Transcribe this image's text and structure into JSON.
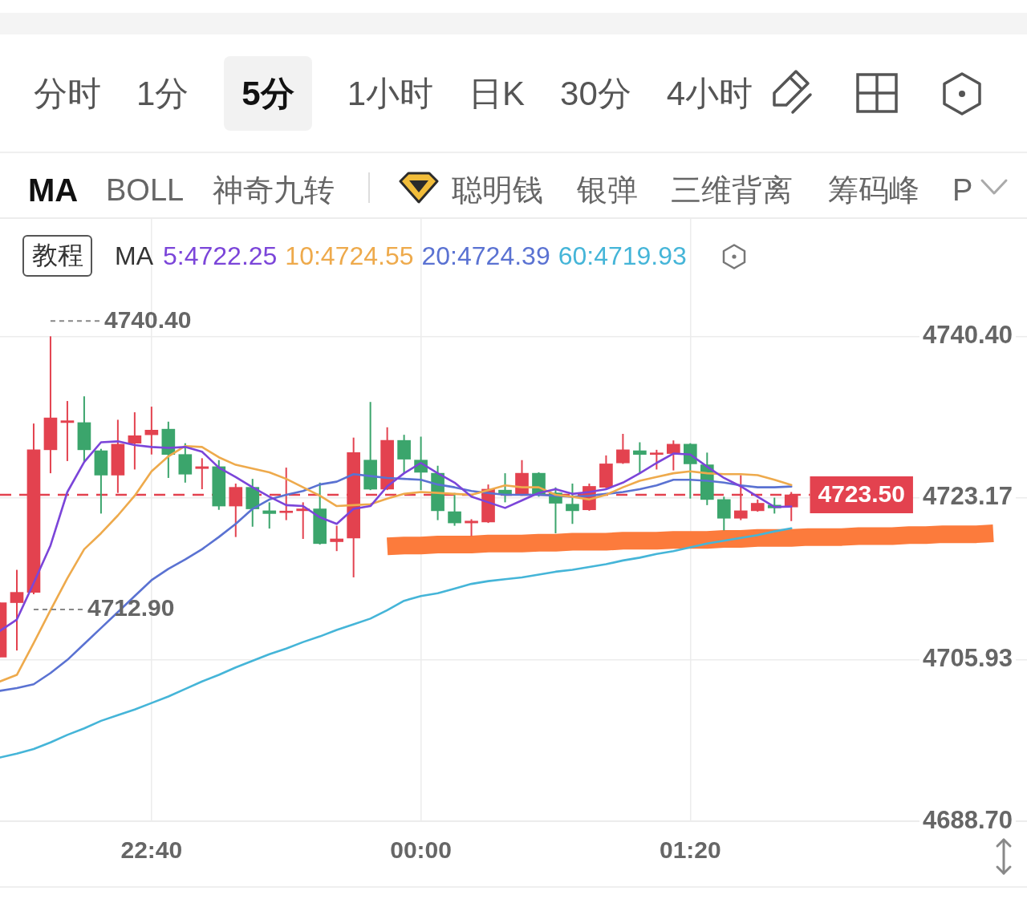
{
  "chart_data": {
    "type": "candlestick",
    "categories": [
      null,
      null,
      null,
      null,
      null,
      null,
      null,
      null,
      null,
      "22:40",
      null,
      null,
      null,
      null,
      null,
      null,
      null,
      null,
      null,
      null,
      null,
      null,
      null,
      null,
      null,
      "00:00",
      null,
      null,
      null,
      null,
      null,
      null,
      null,
      null,
      null,
      null,
      null,
      null,
      null,
      null,
      null,
      "01:20",
      null,
      null,
      null,
      null,
      null,
      null,
      null,
      null,
      null,
      null,
      null,
      null,
      null,
      null,
      null,
      null,
      null,
      null,
      null,
      null
    ],
    "ohlc": [
      [
        4706.2,
        4712.0,
        4706.2,
        4712.0
      ],
      [
        4712.0,
        4715.5,
        4706.9,
        4713.1
      ],
      [
        4713.1,
        4731.1,
        4712.9,
        4728.3
      ],
      [
        4728.3,
        4740.4,
        4725.8,
        4731.7
      ],
      [
        4731.2,
        4733.5,
        4727.1,
        4731.4
      ],
      [
        4731.2,
        4734.0,
        4727.0,
        4728.3
      ],
      [
        4728.2,
        4728.4,
        4721.5,
        4725.6
      ],
      [
        4725.6,
        4731.5,
        4723.7,
        4728.9
      ],
      [
        4729.0,
        4732.3,
        4726.2,
        4729.8
      ],
      [
        4729.9,
        4732.9,
        4727.8,
        4730.4
      ],
      [
        4730.5,
        4731.3,
        4725.3,
        4727.8
      ],
      [
        4727.8,
        4729.0,
        4724.8,
        4725.7
      ],
      [
        4726.3,
        4727.4,
        4724.1,
        4726.5
      ],
      [
        4726.5,
        4727.2,
        4721.9,
        4722.3
      ],
      [
        4722.3,
        4724.7,
        4719.0,
        4724.3
      ],
      [
        4724.3,
        4725.2,
        4720.1,
        4722.0
      ],
      [
        4721.8,
        4722.7,
        4719.9,
        4721.5
      ],
      [
        4721.6,
        4726.4,
        4720.8,
        4721.7
      ],
      [
        4721.8,
        4722.7,
        4718.8,
        4722.0
      ],
      [
        4722.0,
        4724.8,
        4718.2,
        4718.3
      ],
      [
        4718.5,
        4720.2,
        4717.5,
        4718.8
      ],
      [
        4718.9,
        4729.6,
        4714.7,
        4728.0
      ],
      [
        4727.2,
        4733.4,
        4724.0,
        4724.1
      ],
      [
        4724.1,
        4730.7,
        4724.0,
        4729.3
      ],
      [
        4729.3,
        4729.9,
        4725.8,
        4727.3
      ],
      [
        4727.2,
        4729.7,
        4724.0,
        4725.9
      ],
      [
        4725.8,
        4726.6,
        4720.8,
        4721.8
      ],
      [
        4721.7,
        4723.7,
        4720.2,
        4720.5
      ],
      [
        4720.5,
        4720.9,
        4719.1,
        4720.7
      ],
      [
        4720.6,
        4724.6,
        4720.5,
        4724.1
      ],
      [
        4724.0,
        4725.8,
        4722.7,
        4723.6
      ],
      [
        4723.5,
        4727.2,
        4723.4,
        4725.8
      ],
      [
        4725.8,
        4725.9,
        4723.3,
        4723.5
      ],
      [
        4723.7,
        4724.3,
        4719.4,
        4722.6
      ],
      [
        4722.5,
        4724.7,
        4720.4,
        4721.8
      ],
      [
        4721.9,
        4724.7,
        4721.8,
        4724.4
      ],
      [
        4724.3,
        4727.7,
        4724.2,
        4726.8
      ],
      [
        4726.9,
        4730.0,
        4726.8,
        4728.3
      ],
      [
        4728.2,
        4729.1,
        4725.8,
        4727.8
      ],
      [
        4727.8,
        4728.3,
        4726.2,
        4727.9
      ],
      [
        4727.9,
        4729.3,
        4726.1,
        4728.9
      ],
      [
        4728.9,
        4729.0,
        4723.1,
        4726.8
      ],
      [
        4726.7,
        4728.0,
        4722.4,
        4723.0
      ],
      [
        4723.0,
        4723.3,
        4719.7,
        4721.0
      ],
      [
        4721.0,
        4725.6,
        4720.8,
        4721.8
      ],
      [
        4721.8,
        4723.0,
        4721.7,
        4722.6
      ],
      [
        4722.4,
        4723.2,
        4721.5,
        4722.1
      ],
      [
        4722.2,
        4723.8,
        4720.7,
        4723.5
      ],
      null,
      null,
      null,
      null,
      null,
      null,
      null,
      null,
      null,
      null,
      null,
      null,
      null,
      null
    ],
    "colors": [
      "#e3424f",
      "#e3424f",
      "#e3424f",
      "#e3424f",
      "#e3424f",
      "#3ba56c",
      "#3ba56c",
      "#e3424f",
      "#e3424f",
      "#e3424f",
      "#3ba56c",
      "#3ba56c",
      "#e3424f",
      "#3ba56c",
      "#e3424f",
      "#3ba56c",
      "#3ba56c",
      "#e3424f",
      "#e3424f",
      "#3ba56c",
      "#e3424f",
      "#e3424f",
      "#3ba56c",
      "#e3424f",
      "#3ba56c",
      "#3ba56c",
      "#3ba56c",
      "#3ba56c",
      "#e3424f",
      "#e3424f",
      "#3ba56c",
      "#e3424f",
      "#3ba56c",
      "#3ba56c",
      "#3ba56c",
      "#e3424f",
      "#e3424f",
      "#e3424f",
      "#3ba56c",
      "#e3424f",
      "#e3424f",
      "#3ba56c",
      "#3ba56c",
      "#3ba56c",
      "#e3424f",
      "#e3424f",
      "#3ba56c",
      "#e3424f",
      null,
      null,
      null,
      null,
      null,
      null,
      null,
      null,
      null,
      null,
      null,
      null,
      null,
      null
    ],
    "series": [
      {
        "name": "5:4722.25",
        "type": "line",
        "color": "#7b45d9",
        "values": [
          4709.0,
          4710.2,
          4714.1,
          4718.1,
          4723.8,
          4727.0,
          4729.1,
          4729.2,
          4728.8,
          4728.6,
          4728.5,
          4728.6,
          4728.1,
          4726.4,
          4725.4,
          4724.3,
          4723.3,
          4722.4,
          4722.3,
          4721.1,
          4720.4,
          4722.0,
          4722.3,
          4724.4,
          4725.8,
          4726.9,
          4725.8,
          4724.8,
          4723.3,
          4722.7,
          4722.1,
          4722.9,
          4723.7,
          4724.1,
          4723.6,
          4723.8,
          4724.1,
          4724.8,
          4725.8,
          4726.9,
          4727.9,
          4727.8,
          4726.5,
          4725.3,
          4724.4,
          4723.3,
          4722.2,
          4722.25,
          null,
          null,
          null,
          null,
          null,
          null,
          null,
          null,
          null,
          null,
          null,
          null,
          null,
          null
        ]
      },
      {
        "name": "10:4724.55",
        "type": "line",
        "color": "#eeaa4c",
        "values": [
          4703.6,
          4704.3,
          4707.7,
          4711.2,
          4714.6,
          4717.7,
          4719.4,
          4721.3,
          4723.4,
          4726.0,
          4727.6,
          4728.7,
          4728.6,
          4727.5,
          4726.7,
          4726.3,
          4725.9,
          4725.2,
          4724.3,
          4723.4,
          4722.3,
          4722.4,
          4722.5,
          4723.1,
          4723.6,
          4723.8,
          4723.7,
          4723.6,
          4723.5,
          4724.0,
          4724.5,
          4724.3,
          4724.3,
          4723.5,
          4723.3,
          4723.0,
          4723.5,
          4724.3,
          4725.0,
          4725.4,
          4725.8,
          4726.0,
          4725.8,
          4725.7,
          4725.7,
          4725.6,
          4725.1,
          4724.55,
          null,
          null,
          null,
          null,
          null,
          null,
          null,
          null,
          null,
          null,
          null,
          null,
          null,
          null
        ]
      },
      {
        "name": "20:4724.39",
        "type": "line",
        "color": "#5a72d2",
        "values": [
          4702.6,
          4702.9,
          4703.3,
          4704.5,
          4705.9,
          4707.6,
          4709.3,
          4711.0,
          4712.7,
          4714.4,
          4715.6,
          4716.6,
          4717.7,
          4719.0,
          4720.4,
          4722.0,
          4723.0,
          4723.5,
          4723.9,
          4724.6,
          4724.9,
          4725.7,
          4725.5,
          4725.3,
          4725.2,
          4725.1,
          4724.6,
          4724.3,
          4723.9,
          4723.7,
          4723.5,
          4723.5,
          4723.5,
          4723.4,
          4723.3,
          4723.4,
          4723.6,
          4723.8,
          4724.1,
          4724.5,
          4725.1,
          4725.1,
          4725.0,
          4724.8,
          4724.5,
          4724.3,
          4724.3,
          4724.39,
          null,
          null,
          null,
          null,
          null,
          null,
          null,
          null,
          null,
          null,
          null,
          null,
          null,
          null
        ]
      },
      {
        "name": "60:4719.93",
        "type": "line",
        "color": "#45b5d8",
        "values": [
          4695.5,
          4695.9,
          4696.4,
          4697.1,
          4697.9,
          4698.6,
          4699.4,
          4700.0,
          4700.6,
          4701.3,
          4702.0,
          4702.8,
          4703.6,
          4704.3,
          4705.1,
          4705.8,
          4706.5,
          4707.1,
          4707.8,
          4708.4,
          4709.1,
          4709.7,
          4710.3,
          4711.2,
          4712.2,
          4712.7,
          4713.0,
          4713.5,
          4714.0,
          4714.3,
          4714.5,
          4714.7,
          4715.0,
          4715.3,
          4715.5,
          4715.8,
          4716.1,
          4716.5,
          4716.8,
          4717.2,
          4717.5,
          4717.9,
          4718.3,
          4718.6,
          4718.9,
          4719.2,
          4719.6,
          4719.93,
          null,
          null,
          null,
          null,
          null,
          null,
          null,
          null,
          null,
          null,
          null,
          null,
          null,
          null
        ]
      },
      {
        "type": "line",
        "color": "#fc7b3c",
        "values": [
          null,
          null,
          null,
          null,
          null,
          null,
          null,
          null,
          null,
          null,
          null,
          null,
          null,
          null,
          null,
          null,
          null,
          null,
          null,
          null,
          null,
          null,
          null,
          4718.0,
          4718.1,
          4718.1,
          4718.2,
          4718.2,
          4718.2,
          4718.3,
          4718.3,
          4718.3,
          4718.4,
          4718.4,
          4718.5,
          4718.5,
          4718.5,
          4718.6,
          4718.6,
          4718.6,
          4718.7,
          4718.7,
          4718.7,
          4718.8,
          4718.8,
          4718.9,
          4718.9,
          4718.9,
          4719.0,
          4719.0,
          4719.0,
          4719.1,
          4719.1,
          4719.1,
          4719.2,
          4719.2,
          4719.3,
          4719.3,
          4719.3,
          4719.4,
          null,
          null
        ]
      }
    ],
    "legend_title": "MA",
    "legend": "top left",
    "ylim": [
      4688.7,
      4753.0
    ],
    "yticks": [
      {
        "value": 4688.7,
        "label": "4688.70"
      },
      4705.93,
      4723.17,
      {
        "value": 4740.4,
        "label": "4740.40"
      }
    ],
    "grid": true,
    "ref_lines": [
      {
        "axis": "y",
        "value": 4723.5,
        "label": "4723.50",
        "color": "#e3424f",
        "line_style": "dashed"
      }
    ],
    "annotations": [
      "分时",
      "1分",
      "5分",
      "1小时",
      "日K",
      "30分",
      "4小时",
      "MA",
      "BOLL",
      "神奇九转",
      "聪明钱",
      "银弹",
      "三维背离",
      "筹码峰",
      "P",
      "教程",
      "4740.40",
      {
        "text": "4712.90",
        "y": 4712.9
      }
    ]
  }
}
